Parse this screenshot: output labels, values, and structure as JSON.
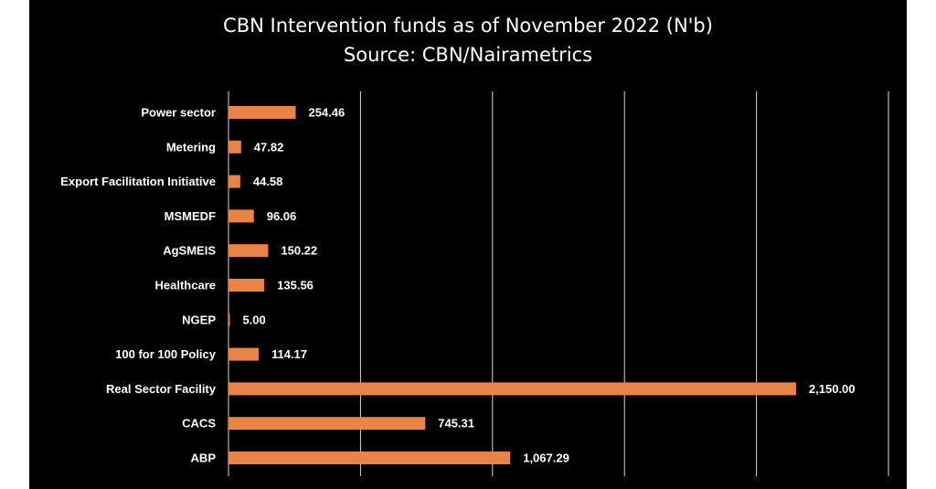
{
  "colors": {
    "background": "#000000",
    "bar": "#E8834A",
    "grid": "#d9d9d9",
    "text": "#ffffff"
  },
  "chart_data": {
    "type": "bar",
    "orientation": "horizontal",
    "title": "CBN Intervention funds as of November 2022 (N'b)",
    "subtitle": "Source: CBN/Nairametrics",
    "categories": [
      "Power sector",
      "Metering",
      "Export Facilitation Initiative",
      "MSMEDF",
      "AgSMEIS",
      "Healthcare",
      "NGEP",
      "100 for 100 Policy",
      "Real Sector Facility",
      "CACS",
      "ABP"
    ],
    "values": [
      254.46,
      47.82,
      44.58,
      96.06,
      150.22,
      135.56,
      5.0,
      114.17,
      2150.0,
      745.31,
      1067.29
    ],
    "value_labels": [
      "254.46",
      "47.82",
      "44.58",
      "96.06",
      "150.22",
      "135.56",
      "5.00",
      "114.17",
      "2,150.00",
      "745.31",
      "1,067.29"
    ],
    "xlim": [
      0,
      2500
    ],
    "grid_step": 500,
    "grid": true,
    "legend": "none"
  }
}
